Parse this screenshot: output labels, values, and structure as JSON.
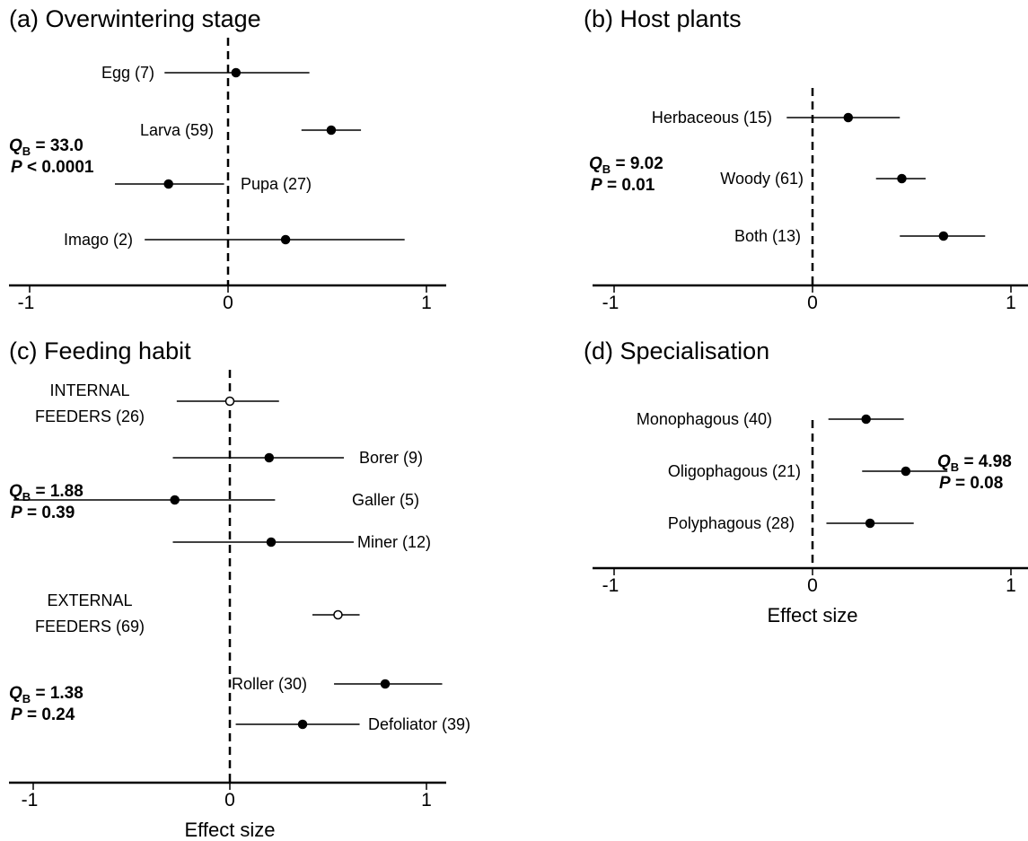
{
  "chart_data": [
    {
      "type": "forest",
      "title": "(a) Overwintering stage",
      "xlim": [
        -1.1,
        1.1
      ],
      "xticks": [
        "-1",
        "0",
        "1"
      ],
      "xlabel": "",
      "points": [
        {
          "label": "Egg (7)",
          "est": 0.04,
          "lo": -0.32,
          "hi": 0.41,
          "filled": true
        },
        {
          "label": "Larva (59)",
          "est": 0.52,
          "lo": 0.37,
          "hi": 0.67,
          "filled": true
        },
        {
          "label": "Pupa (27)",
          "est": -0.3,
          "lo": -0.57,
          "hi": -0.02,
          "filled": true
        },
        {
          "label": "Imago (2)",
          "est": 0.29,
          "lo": -0.42,
          "hi": 0.89,
          "filled": true
        }
      ],
      "stats": [
        {
          "q_label": "Q",
          "q_sub": "B",
          "q_value": " = 33.0",
          "p_label": "P",
          "p_value": " < 0.0001"
        }
      ]
    },
    {
      "type": "forest",
      "title": "(b) Host plants",
      "xlim": [
        -1.1,
        1.1
      ],
      "xticks": [
        "-1",
        "0",
        "1"
      ],
      "xlabel": "",
      "points": [
        {
          "label": "Herbaceous (15)",
          "est": 0.18,
          "lo": -0.13,
          "hi": 0.44,
          "filled": true
        },
        {
          "label": "Woody (61)",
          "est": 0.45,
          "lo": 0.32,
          "hi": 0.57,
          "filled": true
        },
        {
          "label": "Both (13)",
          "est": 0.66,
          "lo": 0.44,
          "hi": 0.87,
          "filled": true
        }
      ],
      "stats": [
        {
          "q_label": "Q",
          "q_sub": "B",
          "q_value": " = 9.02",
          "p_label": "P",
          "p_value": " = 0.01"
        }
      ]
    },
    {
      "type": "forest",
      "title": "(c) Feeding habit",
      "xlim": [
        -1.1,
        1.1
      ],
      "xticks": [
        "-1",
        "0",
        "1"
      ],
      "xlabel": "Effect size",
      "points": [
        {
          "label": "INTERNAL|FEEDERS (26)",
          "est": 0.0,
          "lo": -0.27,
          "hi": 0.25,
          "filled": false
        },
        {
          "label": "Borer (9)",
          "est": 0.2,
          "lo": -0.29,
          "hi": 0.58,
          "filled": true
        },
        {
          "label": "Galler (5)",
          "est": -0.28,
          "lo": -1.1,
          "hi": 0.23,
          "filled": true
        },
        {
          "label": "Miner (12)",
          "est": 0.21,
          "lo": -0.29,
          "hi": 0.63,
          "filled": true
        },
        {
          "label": "EXTERNAL|FEEDERS (69)",
          "est": 0.55,
          "lo": 0.42,
          "hi": 0.66,
          "filled": false
        },
        {
          "label": "Roller (30)",
          "est": 0.79,
          "lo": 0.53,
          "hi": 1.08,
          "filled": true
        },
        {
          "label": "Defoliator (39)",
          "est": 0.37,
          "lo": 0.03,
          "hi": 0.66,
          "filled": true
        }
      ],
      "stats": [
        {
          "q_label": "Q",
          "q_sub": "B",
          "q_value": " = 1.88",
          "p_label": "P",
          "p_value": " = 0.39"
        },
        {
          "q_label": "Q",
          "q_sub": "B",
          "q_value": " = 1.38",
          "p_label": "P",
          "p_value": " = 0.24"
        }
      ]
    },
    {
      "type": "forest",
      "title": "(d) Specialisation",
      "xlim": [
        -1.1,
        1.1
      ],
      "xticks": [
        "-1",
        "0",
        "1"
      ],
      "xlabel": "Effect size",
      "points": [
        {
          "label": "Monophagous (40)",
          "est": 0.27,
          "lo": 0.08,
          "hi": 0.46,
          "filled": true
        },
        {
          "label": "Oligophagous (21)",
          "est": 0.47,
          "lo": 0.25,
          "hi": 0.68,
          "filled": true
        },
        {
          "label": "Polyphagous (28)",
          "est": 0.29,
          "lo": 0.07,
          "hi": 0.51,
          "filled": true
        }
      ],
      "stats": [
        {
          "q_label": "Q",
          "q_sub": "B",
          "q_value": " = 4.98",
          "p_label": "P",
          "p_value": " = 0.08"
        }
      ]
    }
  ]
}
